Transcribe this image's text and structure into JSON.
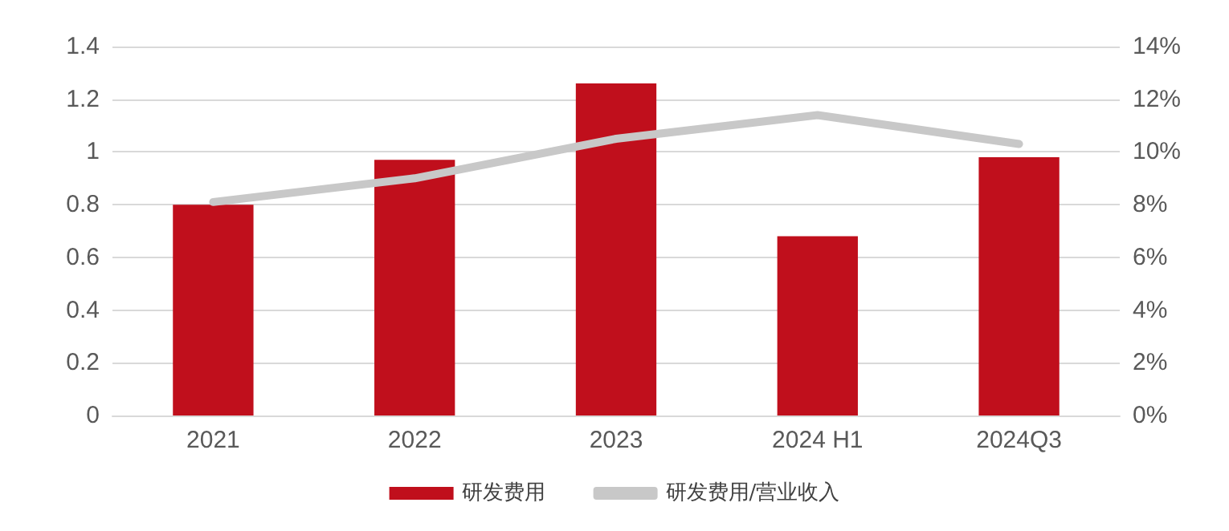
{
  "chart_data": {
    "type": "bar",
    "categories": [
      "2021",
      "2022",
      "2023",
      "2024 H1",
      "2024Q3"
    ],
    "series": [
      {
        "name": "研发费用",
        "color": "#c00f1c",
        "values": [
          0.8,
          0.97,
          1.26,
          0.68,
          0.98
        ]
      },
      {
        "name": "研发费用/营业收入",
        "type": "line",
        "axis": "y2",
        "color": "#c8c8c8",
        "values": [
          8.1,
          9.0,
          10.5,
          11.4,
          10.3
        ]
      }
    ],
    "ylim": [
      0,
      1.4
    ],
    "yticks": [
      0,
      0.2,
      0.4,
      0.6,
      0.8,
      1,
      1.2,
      1.4
    ],
    "y2lim": [
      0,
      14
    ],
    "y2ticks": [
      {
        "value": 0,
        "label": "0%"
      },
      {
        "value": 2,
        "label": "2%"
      },
      {
        "value": 4,
        "label": "4%"
      },
      {
        "value": 6,
        "label": "6%"
      },
      {
        "value": 8,
        "label": "8%"
      },
      {
        "value": 10,
        "label": "10%"
      },
      {
        "value": 12,
        "label": "12%"
      },
      {
        "value": 14,
        "label": "14%"
      }
    ],
    "grid": "y",
    "legend": "bottom",
    "marker": "none"
  }
}
